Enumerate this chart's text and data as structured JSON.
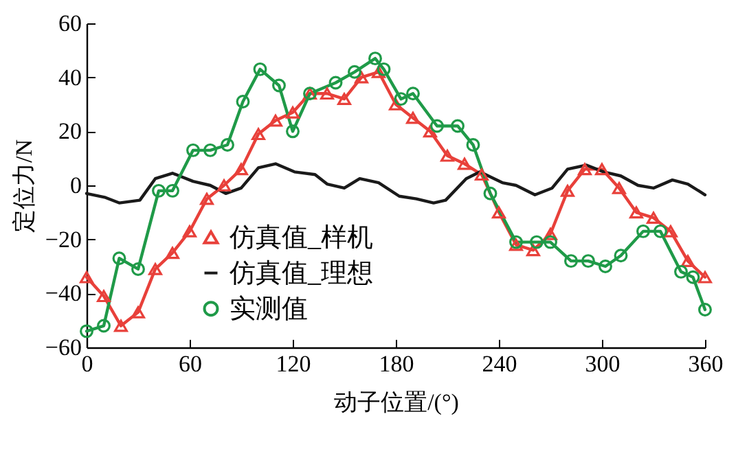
{
  "chart_data": {
    "type": "line",
    "xlabel": "动子位置/(°)",
    "ylabel": "定位力/N",
    "xlim": [
      0,
      360
    ],
    "xticks": [
      0,
      60,
      120,
      180,
      240,
      300,
      360
    ],
    "ylim": [
      -60,
      60
    ],
    "yticks": [
      -60,
      -40,
      -20,
      0,
      20,
      40,
      60
    ],
    "grid": false,
    "legend": "bottom",
    "line_style": "solid",
    "series": [
      {
        "name": "仿真值_样机",
        "color": "#e8403a",
        "marker": "triangle",
        "x": [
          0,
          10,
          20,
          30,
          40,
          50,
          60,
          70,
          80,
          90,
          100,
          110,
          120,
          130,
          140,
          150,
          160,
          170,
          180,
          190,
          200,
          210,
          220,
          230,
          240,
          250,
          260,
          270,
          280,
          290,
          300,
          310,
          320,
          330,
          340,
          350,
          360
        ],
        "values": [
          -34,
          -41,
          -52,
          -47,
          -31,
          -25,
          -17,
          -5,
          0,
          6,
          19,
          24,
          27,
          34,
          34,
          32,
          40,
          42,
          30,
          25,
          20,
          11,
          8,
          4,
          -10,
          -22,
          -24,
          -18,
          -2,
          6,
          6,
          -1,
          -10,
          -12,
          -17,
          -28,
          -34
        ]
      },
      {
        "name": "仿真值_理想",
        "color": "#1a1a1a",
        "marker": "none",
        "x": [
          0,
          11,
          19,
          31,
          40,
          50,
          62,
          72,
          81,
          90,
          100,
          110,
          121,
          133,
          140,
          150,
          159,
          170,
          182,
          192,
          202,
          209,
          221,
          229,
          242,
          250,
          261,
          271,
          280,
          291,
          301,
          311,
          321,
          330,
          341,
          350,
          360
        ],
        "values": [
          -3,
          -4.5,
          -6.5,
          -5.5,
          2.5,
          4.5,
          1.5,
          0,
          -3,
          -1,
          6.5,
          8,
          5,
          4,
          0.5,
          -1,
          2.5,
          1,
          -4,
          -5,
          -6.5,
          -5.5,
          2.5,
          5,
          1,
          0,
          -3.5,
          -1,
          6,
          7.5,
          5,
          3.5,
          0,
          -1,
          2,
          0.5,
          -3.5
        ]
      },
      {
        "name": "实测值",
        "color": "#1f9a48",
        "marker": "circle",
        "x": [
          0,
          10,
          19,
          30,
          42,
          50,
          62,
          72,
          82,
          91,
          101,
          112,
          120,
          130,
          145,
          156,
          168,
          173,
          183,
          190,
          204,
          216,
          225,
          235,
          250,
          262,
          270,
          282,
          292,
          302,
          311,
          324,
          334,
          346,
          353,
          360
        ],
        "values": [
          -54,
          -52,
          -27,
          -31,
          -2,
          -2,
          13,
          13,
          15,
          31,
          43,
          37,
          20,
          34,
          38,
          42,
          47,
          43,
          32,
          34,
          22,
          22,
          15,
          -3,
          -21,
          -21,
          -21,
          -28,
          -28,
          -30,
          -26,
          -17,
          -17,
          -32,
          -34,
          -46
        ]
      }
    ]
  }
}
